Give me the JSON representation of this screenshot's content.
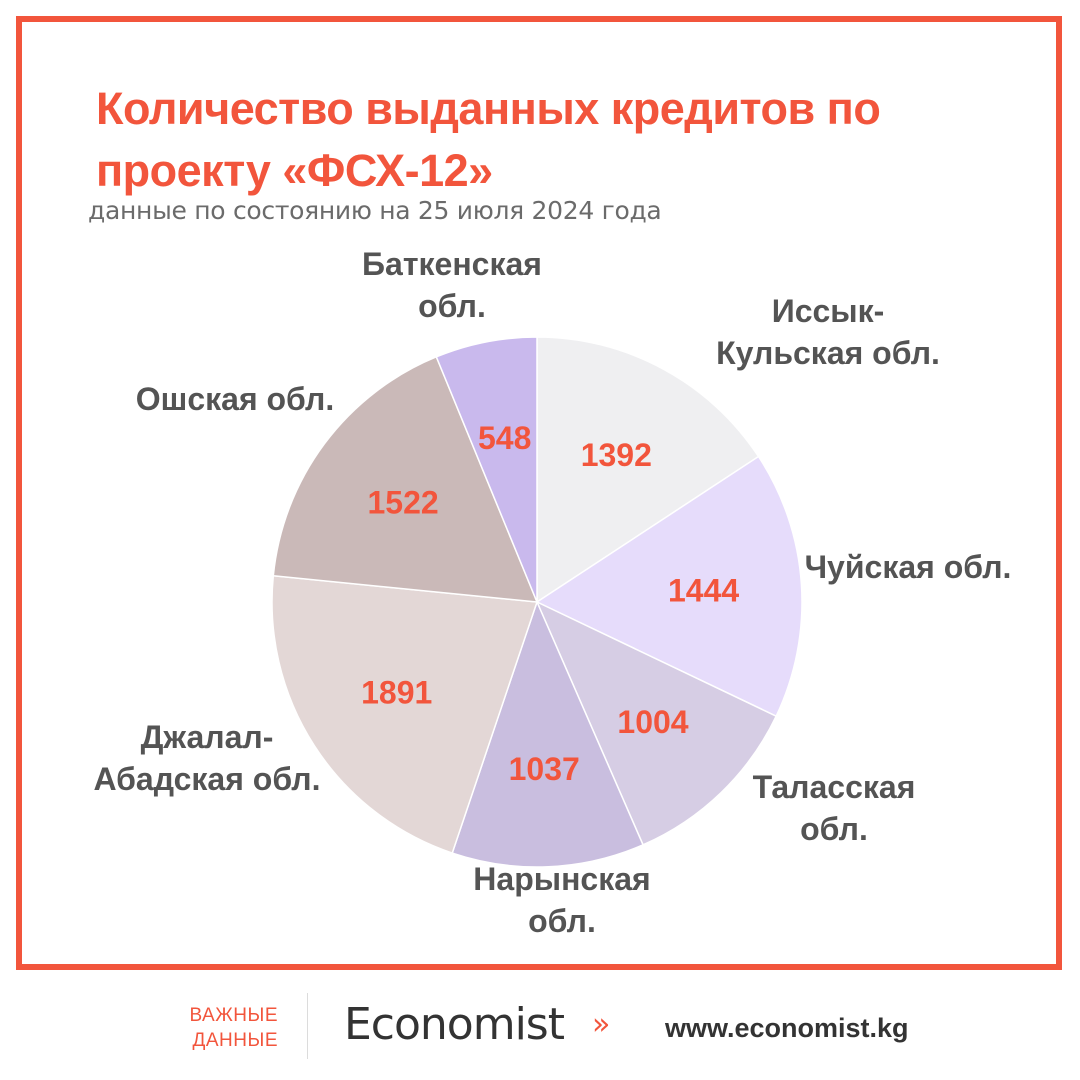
{
  "header": {
    "title": "Количество выданных кредитов по проекту «ФСХ-12»",
    "subtitle": "данные по состоянию на 25 июля 2024 года"
  },
  "chart_data": {
    "type": "pie",
    "title": "Количество выданных кредитов по проекту «ФСХ-12»",
    "start_angle": 0,
    "direction": "clockwise",
    "slices": [
      {
        "label_lines": [
          "Иссык-",
          "Кульская обл."
        ],
        "value": 1392,
        "color": "#efeff1"
      },
      {
        "label_lines": [
          "Чуйская обл."
        ],
        "value": 1444,
        "color": "#e6dcfb"
      },
      {
        "label_lines": [
          "Таласская",
          "обл."
        ],
        "value": 1004,
        "color": "#d6cde4"
      },
      {
        "label_lines": [
          "Нарынская",
          "обл."
        ],
        "value": 1037,
        "color": "#c9bedf"
      },
      {
        "label_lines": [
          "Джалал-",
          "Абадская обл."
        ],
        "value": 1891,
        "color": "#e3d7d6"
      },
      {
        "label_lines": [
          "Ошская обл."
        ],
        "value": 1522,
        "color": "#cab9b8"
      },
      {
        "label_lines": [
          "Баткенская",
          "обл."
        ],
        "value": 548,
        "color": "#c9b9ed"
      }
    ]
  },
  "footer": {
    "tag_line1": "ВАЖНЫЕ",
    "tag_line2": "ДАННЫЕ",
    "logo": "Economist",
    "arrows": "»",
    "url": "www.economist.kg"
  },
  "colors": {
    "accent": "#f2553c",
    "label": "#545454"
  }
}
